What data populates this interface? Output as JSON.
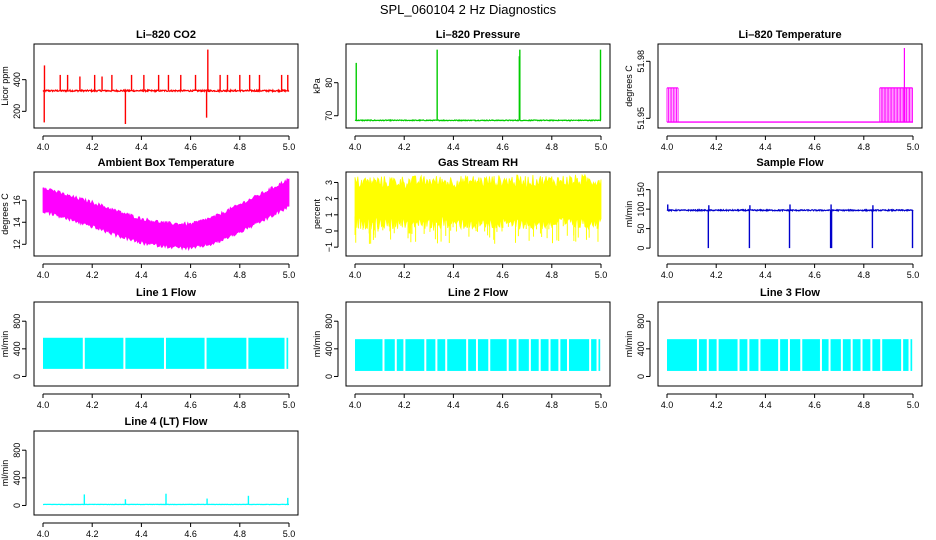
{
  "figure": {
    "title": "SPL_060104  2 Hz Diagnostics"
  },
  "chart_data": [
    {
      "type": "line",
      "title": "Li–820 CO2",
      "ylabel": "Licor ppm",
      "color": "#ff0000",
      "x_ticks": [
        "4.0",
        "4.2",
        "4.4",
        "4.6",
        "4.8",
        "5.0"
      ],
      "xlim": [
        4.0,
        5.0
      ],
      "y_ticks": [
        {
          "v": 200,
          "label": "200"
        },
        {
          "v": 400,
          "label": "400"
        }
      ],
      "ylim": [
        120,
        600
      ],
      "pattern": "spiky",
      "base": 330,
      "noise": 10,
      "spikes": [
        {
          "x": 4.006,
          "v": 490
        },
        {
          "x": 4.005,
          "v": 130
        },
        {
          "x": 4.07,
          "v": 430
        },
        {
          "x": 4.1,
          "v": 430
        },
        {
          "x": 4.15,
          "v": 420
        },
        {
          "x": 4.21,
          "v": 430
        },
        {
          "x": 4.24,
          "v": 420
        },
        {
          "x": 4.28,
          "v": 430
        },
        {
          "x": 4.335,
          "v": 120
        },
        {
          "x": 4.36,
          "v": 430
        },
        {
          "x": 4.41,
          "v": 430
        },
        {
          "x": 4.47,
          "v": 430
        },
        {
          "x": 4.51,
          "v": 430
        },
        {
          "x": 4.56,
          "v": 430
        },
        {
          "x": 4.62,
          "v": 430
        },
        {
          "x": 4.67,
          "v": 590
        },
        {
          "x": 4.665,
          "v": 160
        },
        {
          "x": 4.72,
          "v": 430
        },
        {
          "x": 4.75,
          "v": 430
        },
        {
          "x": 4.8,
          "v": 430
        },
        {
          "x": 4.84,
          "v": 430
        },
        {
          "x": 4.88,
          "v": 430
        },
        {
          "x": 4.97,
          "v": 430
        },
        {
          "x": 4.995,
          "v": 430
        }
      ]
    },
    {
      "type": "line",
      "title": "Li–820 Pressure",
      "ylabel": "kPa",
      "color": "#00cc00",
      "x_ticks": [
        "4.0",
        "4.2",
        "4.4",
        "4.6",
        "4.8",
        "5.0"
      ],
      "xlim": [
        4.0,
        5.0
      ],
      "y_ticks": [
        {
          "v": 70,
          "label": "70"
        },
        {
          "v": 80,
          "label": "80"
        }
      ],
      "ylim": [
        67.5,
        90.5
      ],
      "pattern": "spiky",
      "base": 68.6,
      "noise": 0.25,
      "spikes": [
        {
          "x": 4.005,
          "v": 86
        },
        {
          "x": 4.334,
          "v": 90
        },
        {
          "x": 4.67,
          "v": 90
        },
        {
          "x": 4.668,
          "v": 88
        },
        {
          "x": 4.998,
          "v": 90
        }
      ]
    },
    {
      "type": "line",
      "title": "Li–820 Temperature",
      "ylabel": "degrees C",
      "color": "#ff00ff",
      "x_ticks": [
        "4.0",
        "4.2",
        "4.4",
        "4.6",
        "4.8",
        "5.0"
      ],
      "xlim": [
        4.0,
        5.0
      ],
      "y_ticks": [
        {
          "v": 51.95,
          "label": "51.95"
        },
        {
          "v": 51.98,
          "label": "51.98"
        }
      ],
      "ylim": [
        51.947,
        51.987
      ],
      "pattern": "square",
      "base": 51.948,
      "high": 51.966,
      "bands": [
        [
          4.0,
          4.045
        ],
        [
          4.865,
          4.998
        ]
      ],
      "spikes": [
        {
          "x": 4.965,
          "v": 51.987
        }
      ]
    },
    {
      "type": "area",
      "title": "Ambient Box Temperature",
      "ylabel": "degrees C",
      "color": "#ff00ff",
      "x_ticks": [
        "4.0",
        "4.2",
        "4.4",
        "4.6",
        "4.8",
        "5.0"
      ],
      "xlim": [
        4.0,
        5.0
      ],
      "y_ticks": [
        {
          "v": 12,
          "label": "12"
        },
        {
          "v": 14,
          "label": "14"
        },
        {
          "v": 16,
          "label": "16"
        }
      ],
      "ylim": [
        11.3,
        18.2
      ],
      "pattern": "band",
      "upper": [
        [
          4.0,
          17.2
        ],
        [
          4.1,
          16.4
        ],
        [
          4.2,
          15.8
        ],
        [
          4.3,
          15.0
        ],
        [
          4.4,
          14.3
        ],
        [
          4.5,
          13.9
        ],
        [
          4.6,
          13.8
        ],
        [
          4.7,
          14.5
        ],
        [
          4.8,
          15.6
        ],
        [
          4.9,
          16.7
        ],
        [
          5.0,
          17.9
        ]
      ],
      "lower": [
        [
          4.0,
          15.2
        ],
        [
          4.1,
          14.5
        ],
        [
          4.2,
          13.8
        ],
        [
          4.3,
          13.0
        ],
        [
          4.4,
          12.3
        ],
        [
          4.5,
          12.0
        ],
        [
          4.6,
          11.8
        ],
        [
          4.7,
          12.3
        ],
        [
          4.8,
          13.3
        ],
        [
          4.9,
          14.4
        ],
        [
          5.0,
          15.6
        ]
      ],
      "jitter": 0.35
    },
    {
      "type": "area",
      "title": "Gas Stream RH",
      "ylabel": "percent",
      "color": "#ffff00",
      "x_ticks": [
        "4.0",
        "4.2",
        "4.4",
        "4.6",
        "4.8",
        "5.0"
      ],
      "xlim": [
        4.0,
        5.0
      ],
      "y_ticks": [
        {
          "v": -1,
          "label": "−1"
        },
        {
          "v": 0,
          "label": "0"
        },
        {
          "v": 1,
          "label": "1"
        },
        {
          "v": 2,
          "label": "2"
        },
        {
          "v": 3,
          "label": "3"
        }
      ],
      "ylim": [
        -1.3,
        3.4
      ],
      "pattern": "band",
      "upper": [
        [
          4.0,
          3.0
        ],
        [
          5.0,
          3.1
        ]
      ],
      "lower": [
        [
          4.0,
          0.9
        ],
        [
          5.0,
          0.9
        ]
      ],
      "jitter": 0.8,
      "dips": [
        -0.8,
        0.4
      ]
    },
    {
      "type": "line",
      "title": "Sample Flow",
      "ylabel": "ml/min",
      "color": "#0000cc",
      "x_ticks": [
        "4.0",
        "4.2",
        "4.4",
        "4.6",
        "4.8",
        "5.0"
      ],
      "xlim": [
        4.0,
        5.0
      ],
      "y_ticks": [
        {
          "v": 0,
          "label": "0"
        },
        {
          "v": 50,
          "label": "50"
        },
        {
          "v": 100,
          "label": "100"
        },
        {
          "v": 150,
          "label": "150"
        }
      ],
      "ylim": [
        -10,
        185
      ],
      "pattern": "spiky",
      "base": 97,
      "noise": 3,
      "spikes": [
        {
          "x": 4.003,
          "v": 112
        },
        {
          "x": 4.168,
          "v": 0
        },
        {
          "x": 4.17,
          "v": 110
        },
        {
          "x": 4.335,
          "v": 0
        },
        {
          "x": 4.337,
          "v": 110
        },
        {
          "x": 4.498,
          "v": 0
        },
        {
          "x": 4.5,
          "v": 112
        },
        {
          "x": 4.665,
          "v": 0
        },
        {
          "x": 4.667,
          "v": 112
        },
        {
          "x": 4.669,
          "v": 0
        },
        {
          "x": 4.835,
          "v": 0
        },
        {
          "x": 4.837,
          "v": 110
        },
        {
          "x": 4.998,
          "v": 0
        }
      ]
    },
    {
      "type": "area",
      "title": "Line 1 Flow",
      "ylabel": "ml/min",
      "color": "#00ffff",
      "x_ticks": [
        "4.0",
        "4.2",
        "4.4",
        "4.6",
        "4.8",
        "5.0"
      ],
      "xlim": [
        4.0,
        5.0
      ],
      "y_ticks": [
        {
          "v": 0,
          "label": "0"
        },
        {
          "v": 400,
          "label": "400"
        },
        {
          "v": 800,
          "label": "800"
        }
      ],
      "ylim": [
        -80,
        1020
      ],
      "pattern": "block",
      "top": 560,
      "bottom": 110,
      "gaps": [
        4.165,
        4.33,
        4.495,
        4.66,
        4.83,
        4.985
      ]
    },
    {
      "type": "area",
      "title": "Line 2 Flow",
      "ylabel": "ml/min",
      "color": "#00ffff",
      "x_ticks": [
        "4.0",
        "4.2",
        "4.4",
        "4.6",
        "4.8",
        "5.0"
      ],
      "xlim": [
        4.0,
        5.0
      ],
      "y_ticks": [
        {
          "v": 0,
          "label": "0"
        },
        {
          "v": 400,
          "label": "400"
        },
        {
          "v": 800,
          "label": "800"
        }
      ],
      "ylim": [
        -80,
        1020
      ],
      "pattern": "block",
      "top": 540,
      "bottom": 80,
      "gaps": [
        4.115,
        4.165,
        4.2,
        4.285,
        4.33,
        4.37,
        4.455,
        4.495,
        4.545,
        4.62,
        4.66,
        4.71,
        4.75,
        4.79,
        4.83,
        4.865,
        4.955,
        4.985
      ]
    },
    {
      "type": "area",
      "title": "Line 3 Flow",
      "ylabel": "ml/min",
      "color": "#00ffff",
      "x_ticks": [
        "4.0",
        "4.2",
        "4.4",
        "4.6",
        "4.8",
        "5.0"
      ],
      "xlim": [
        4.0,
        5.0
      ],
      "y_ticks": [
        {
          "v": 0,
          "label": "0"
        },
        {
          "v": 400,
          "label": "400"
        },
        {
          "v": 800,
          "label": "800"
        }
      ],
      "ylim": [
        -80,
        1020
      ],
      "pattern": "block",
      "top": 540,
      "bottom": 80,
      "gaps": [
        4.125,
        4.165,
        4.205,
        4.29,
        4.33,
        4.375,
        4.455,
        4.495,
        4.545,
        4.625,
        4.66,
        4.71,
        4.75,
        4.79,
        4.83,
        4.87,
        4.955,
        4.985
      ]
    },
    {
      "type": "line",
      "title": "Line 4 (LT) Flow",
      "ylabel": "ml/min",
      "color": "#00ffff",
      "x_ticks": [
        "4.0",
        "4.2",
        "4.4",
        "4.6",
        "4.8",
        "5.0"
      ],
      "xlim": [
        4.0,
        5.0
      ],
      "y_ticks": [
        {
          "v": 0,
          "label": "0"
        },
        {
          "v": 400,
          "label": "400"
        },
        {
          "v": 800,
          "label": "800"
        }
      ],
      "ylim": [
        -80,
        1020
      ],
      "pattern": "spiky",
      "base": 15,
      "noise": 4,
      "spikes": [
        {
          "x": 4.168,
          "v": 160
        },
        {
          "x": 4.335,
          "v": 90
        },
        {
          "x": 4.5,
          "v": 170
        },
        {
          "x": 4.667,
          "v": 100
        },
        {
          "x": 4.835,
          "v": 140
        },
        {
          "x": 4.995,
          "v": 110
        }
      ]
    }
  ]
}
